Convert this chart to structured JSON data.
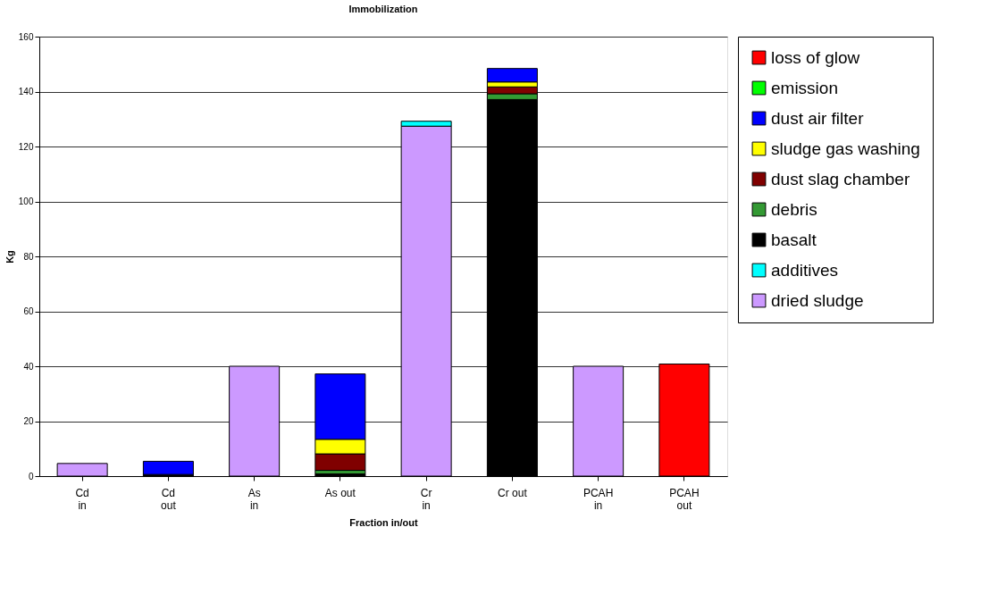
{
  "chart_data": {
    "type": "bar",
    "title": "Immobilization",
    "xlabel": "Fraction in/out",
    "ylabel": "Kg",
    "categories": [
      "Cd\nin",
      "Cd\nout",
      "As\nin",
      "As out",
      "Cr\nin",
      "Cr out",
      "PCAH\nin",
      "PCAH\nout"
    ],
    "stacked": true,
    "ylim": [
      0,
      160
    ],
    "yticks": [
      0,
      20,
      40,
      60,
      80,
      100,
      120,
      140,
      160
    ],
    "grid": "y",
    "legend": "right",
    "series": [
      {
        "name": "dried sludge",
        "color": "#cc99ff",
        "values": [
          4.6,
          null,
          40,
          null,
          127.4,
          null,
          40,
          null
        ]
      },
      {
        "name": "additives",
        "color": "#00ffff",
        "values": [
          null,
          null,
          null,
          null,
          1.8,
          null,
          null,
          null
        ]
      },
      {
        "name": "basalt",
        "color": "#000000",
        "values": [
          null,
          0.6,
          null,
          0.8,
          null,
          137.1,
          null,
          null
        ]
      },
      {
        "name": "debris",
        "color": "#339933",
        "values": [
          null,
          null,
          null,
          1.3,
          null,
          2.1,
          null,
          null
        ]
      },
      {
        "name": "dust slag chamber",
        "color": "#800000",
        "values": [
          null,
          null,
          null,
          6.0,
          null,
          2.5,
          null,
          null
        ]
      },
      {
        "name": "sludge gas washing",
        "color": "#ffff00",
        "values": [
          null,
          null,
          null,
          5.3,
          null,
          1.8,
          null,
          null
        ]
      },
      {
        "name": "dust air filter",
        "color": "#0000ff",
        "values": [
          null,
          4.8,
          null,
          23.8,
          null,
          4.9,
          null,
          null
        ]
      },
      {
        "name": "emission",
        "color": "#00ff00",
        "values": [
          null,
          null,
          null,
          null,
          null,
          null,
          null,
          null
        ]
      },
      {
        "name": "loss of glow",
        "color": "#ff0000",
        "values": [
          null,
          null,
          null,
          null,
          null,
          null,
          null,
          40.8
        ]
      }
    ]
  }
}
